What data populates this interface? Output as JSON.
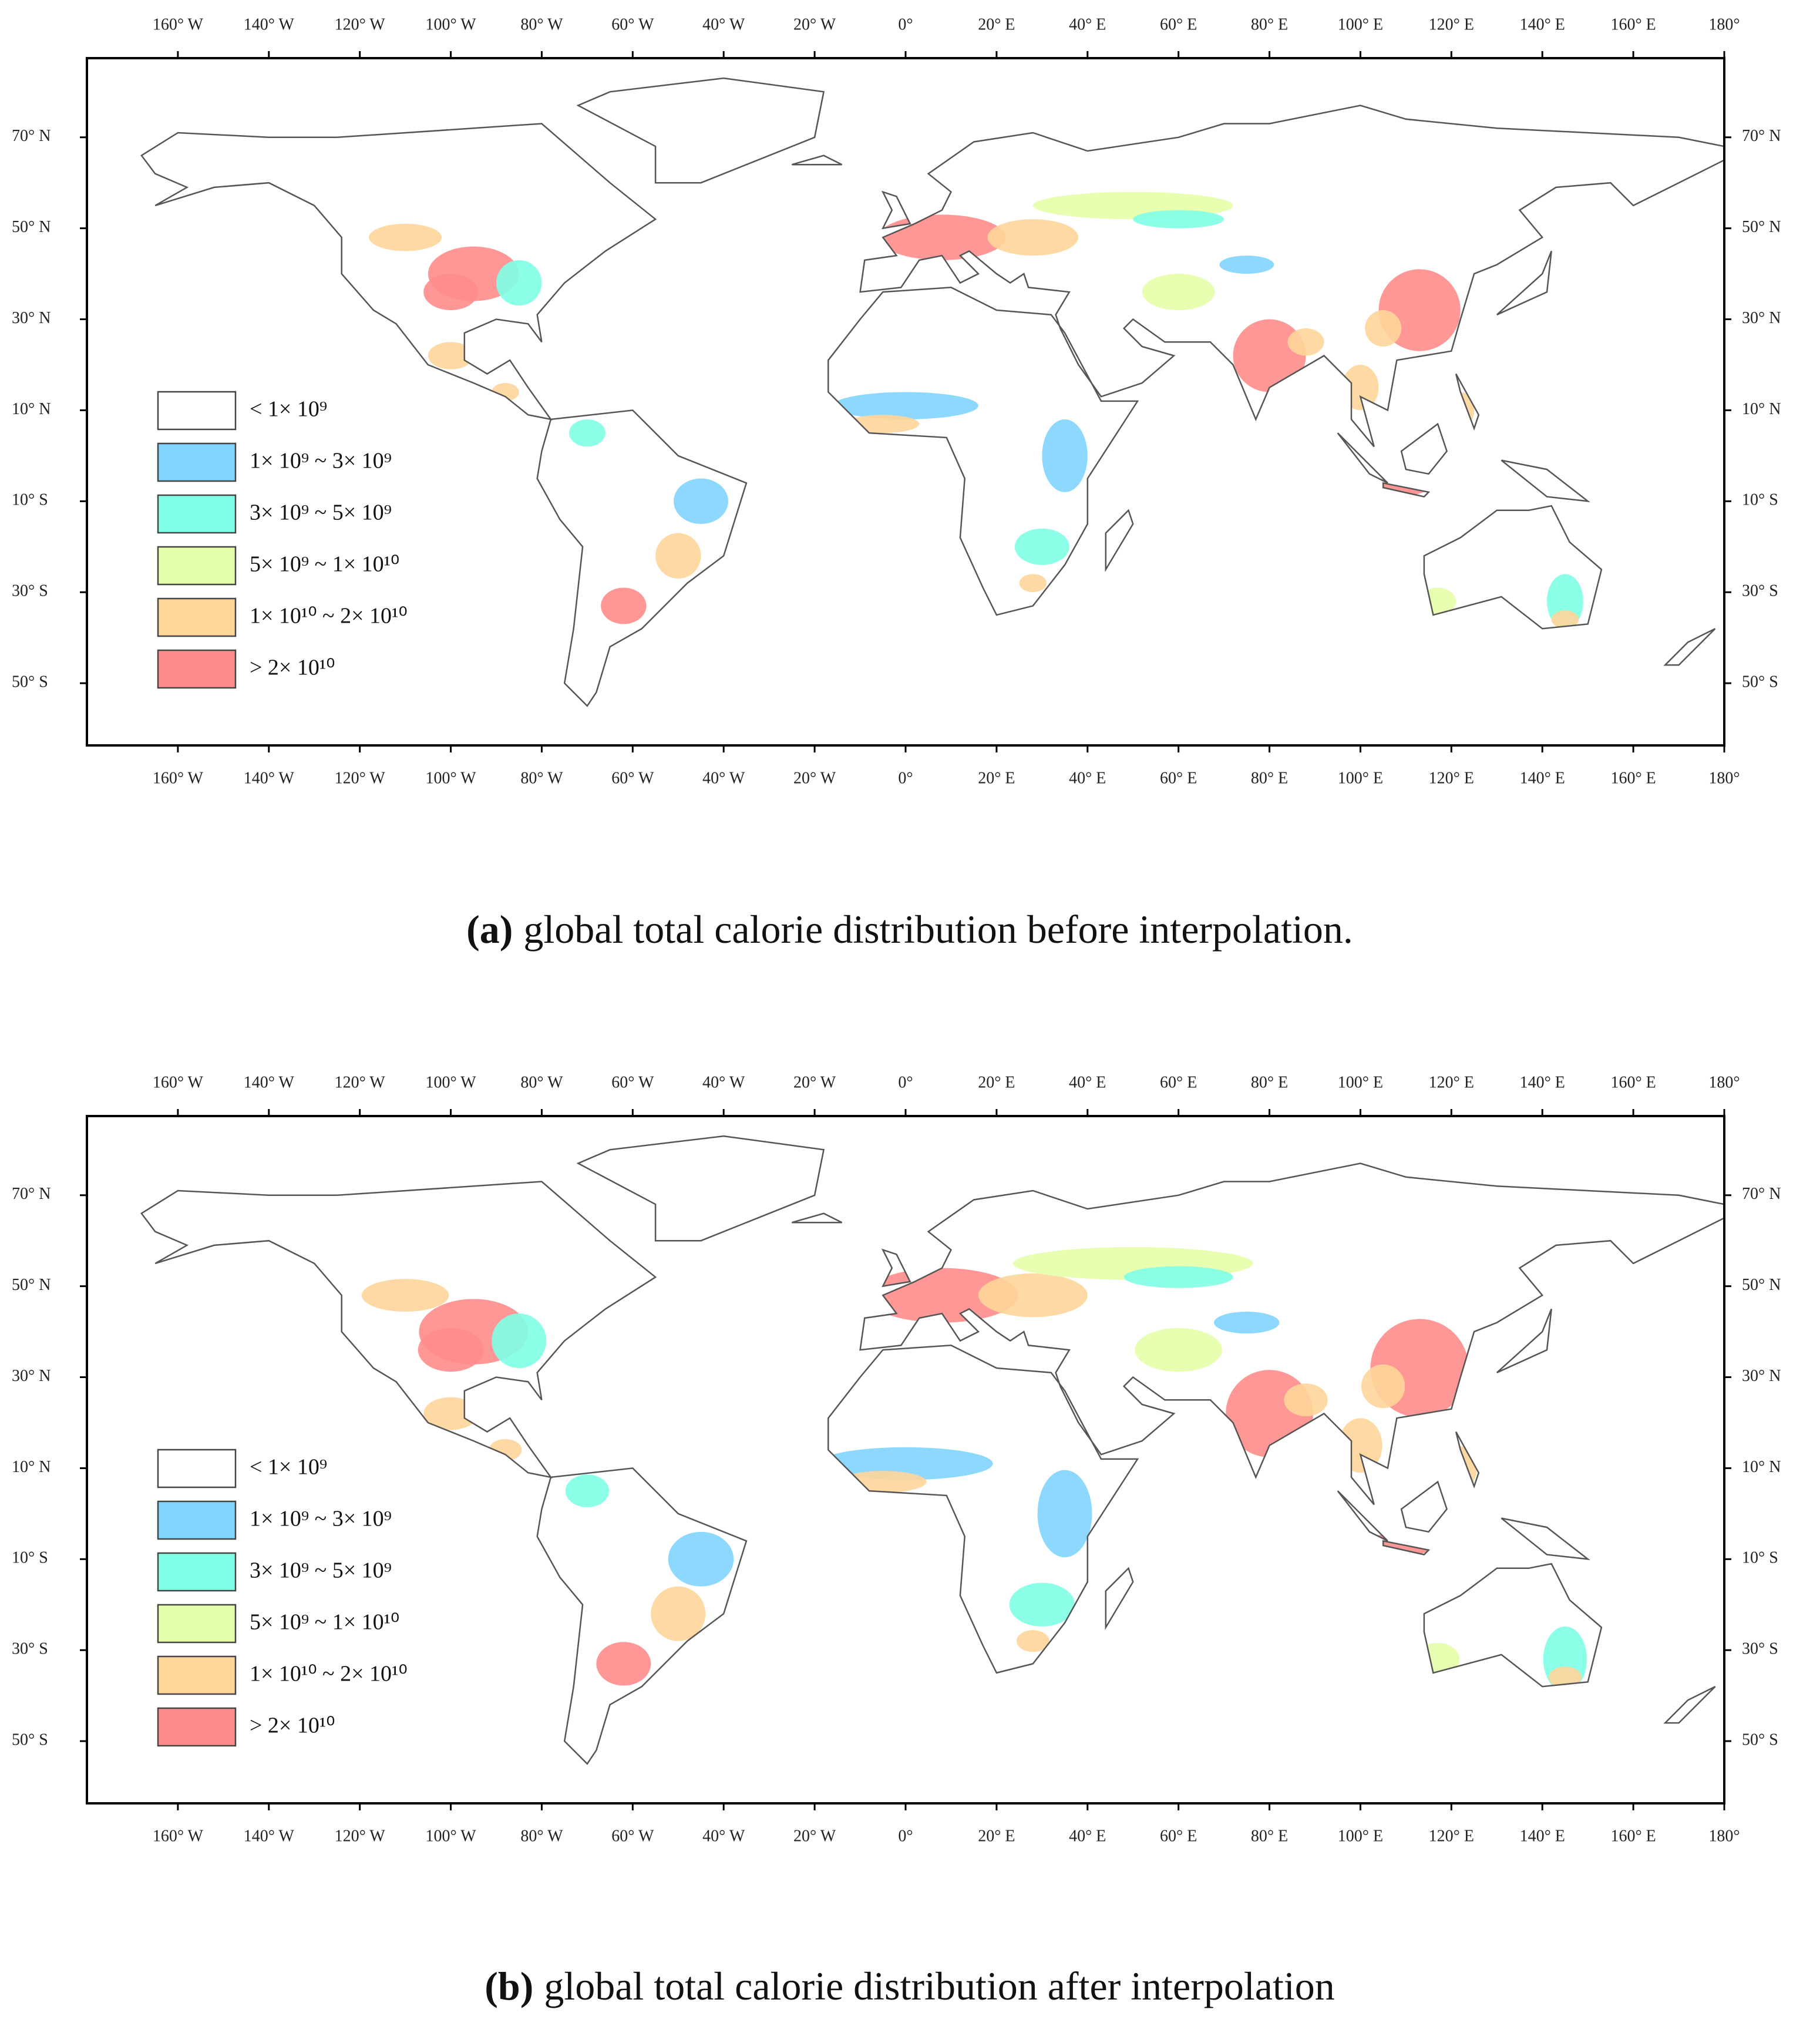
{
  "panels": [
    {
      "lon_ticks": [
        {
          "value": -160,
          "label": "160° W"
        },
        {
          "value": -140,
          "label": "140° W"
        },
        {
          "value": -120,
          "label": "120° W"
        },
        {
          "value": -100,
          "label": "100° W"
        },
        {
          "value": -80,
          "label": "80° W"
        },
        {
          "value": -60,
          "label": "60° W"
        },
        {
          "value": -40,
          "label": "40° W"
        },
        {
          "value": -20,
          "label": "20° W"
        },
        {
          "value": 0,
          "label": "0°"
        },
        {
          "value": 20,
          "label": "20° E"
        },
        {
          "value": 40,
          "label": "40° E"
        },
        {
          "value": 60,
          "label": "60° E"
        },
        {
          "value": 80,
          "label": "80° E"
        },
        {
          "value": 100,
          "label": "100° E"
        },
        {
          "value": 120,
          "label": "120° E"
        },
        {
          "value": 140,
          "label": "140° E"
        },
        {
          "value": 160,
          "label": "160° E"
        },
        {
          "value": 180,
          "label": "180°"
        }
      ],
      "lat_ticks": [
        {
          "value": 70,
          "label": "70° N"
        },
        {
          "value": 50,
          "label": "50° N"
        },
        {
          "value": 30,
          "label": "30° N"
        },
        {
          "value": 10,
          "label": "10° N"
        },
        {
          "value": -10,
          "label": "10° S"
        },
        {
          "value": -30,
          "label": "30° S"
        },
        {
          "value": -50,
          "label": "50° S"
        }
      ],
      "legend": [
        {
          "label": "< 1× 10⁹",
          "color": "#ffffff"
        },
        {
          "label": "1× 10⁹ ~ 3× 10⁹",
          "color": "#80d4ff"
        },
        {
          "label": "3× 10⁹ ~ 5× 10⁹",
          "color": "#80ffe6"
        },
        {
          "label": "5× 10⁹ ~ 1× 10¹⁰",
          "color": "#e6ffaa"
        },
        {
          "label": "1× 10¹⁰ ~ 2× 10¹⁰",
          "color": "#ffd59a"
        },
        {
          "label": "> 2× 10¹⁰",
          "color": "#ff8c8c"
        }
      ],
      "caption": {
        "label": "(a)",
        "text": "global total calorie distribution before interpolation."
      }
    },
    {
      "lon_ticks": [
        {
          "value": -160,
          "label": "160° W"
        },
        {
          "value": -140,
          "label": "140° W"
        },
        {
          "value": -120,
          "label": "120° W"
        },
        {
          "value": -100,
          "label": "100° W"
        },
        {
          "value": -80,
          "label": "80° W"
        },
        {
          "value": -60,
          "label": "60° W"
        },
        {
          "value": -40,
          "label": "40° W"
        },
        {
          "value": -20,
          "label": "20° W"
        },
        {
          "value": 0,
          "label": "0°"
        },
        {
          "value": 20,
          "label": "20° E"
        },
        {
          "value": 40,
          "label": "40° E"
        },
        {
          "value": 60,
          "label": "60° E"
        },
        {
          "value": 80,
          "label": "80° E"
        },
        {
          "value": 100,
          "label": "100° E"
        },
        {
          "value": 120,
          "label": "120° E"
        },
        {
          "value": 140,
          "label": "140° E"
        },
        {
          "value": 160,
          "label": "160° E"
        },
        {
          "value": 180,
          "label": "180°"
        }
      ],
      "lat_ticks": [
        {
          "value": 70,
          "label": "70° N"
        },
        {
          "value": 50,
          "label": "50° N"
        },
        {
          "value": 30,
          "label": "30° N"
        },
        {
          "value": 10,
          "label": "10° N"
        },
        {
          "value": -10,
          "label": "10° S"
        },
        {
          "value": -30,
          "label": "30° S"
        },
        {
          "value": -50,
          "label": "50° S"
        }
      ],
      "legend": [
        {
          "label": "< 1× 10⁹",
          "color": "#ffffff"
        },
        {
          "label": "1× 10⁹ ~ 3× 10⁹",
          "color": "#80d4ff"
        },
        {
          "label": "3× 10⁹ ~ 5× 10⁹",
          "color": "#80ffe6"
        },
        {
          "label": "5× 10⁹ ~ 1× 10¹⁰",
          "color": "#e6ffaa"
        },
        {
          "label": "1× 10¹⁰ ~ 2× 10¹⁰",
          "color": "#ffd59a"
        },
        {
          "label": "> 2× 10¹⁰",
          "color": "#ff8c8c"
        }
      ],
      "caption": {
        "label": "(b)",
        "text": "global total calorie distribution after interpolation"
      }
    }
  ]
}
